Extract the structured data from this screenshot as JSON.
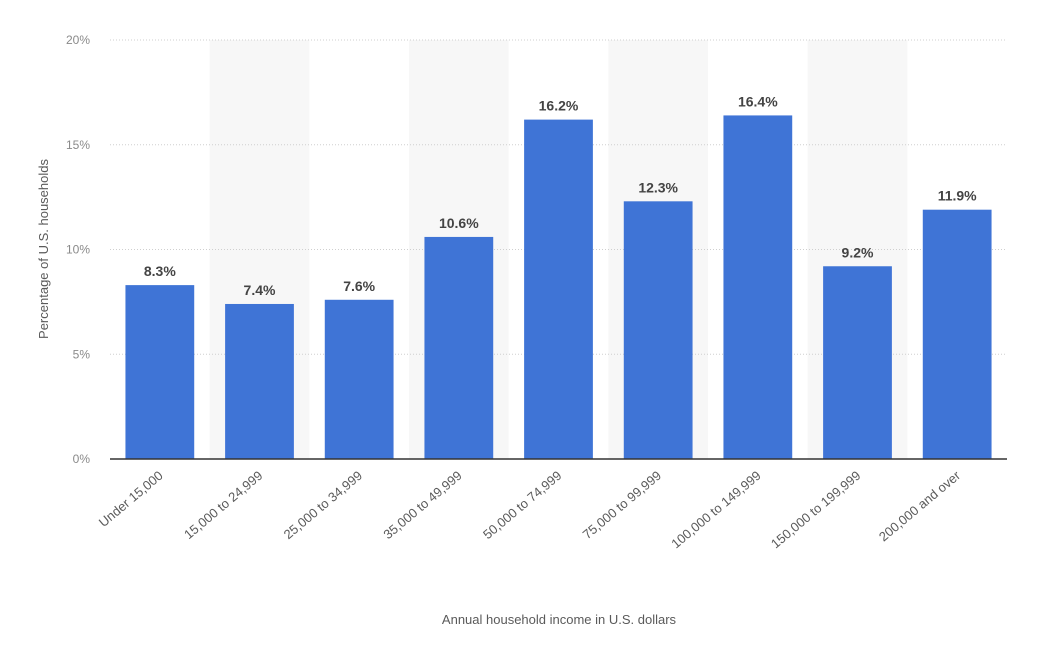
{
  "chart_data": {
    "type": "bar",
    "categories": [
      "Under 15,000",
      "15,000 to 24,999",
      "25,000 to 34,999",
      "35,000 to 49,999",
      "50,000 to 74,999",
      "75,000 to 99,999",
      "100,000 to 149,999",
      "150,000 to 199,999",
      "200,000 and over"
    ],
    "values": [
      8.3,
      7.4,
      7.6,
      10.6,
      16.2,
      12.3,
      16.4,
      9.2,
      11.9
    ],
    "data_labels": [
      "8.3%",
      "7.4%",
      "7.6%",
      "10.6%",
      "16.2%",
      "12.3%",
      "16.4%",
      "9.2%",
      "11.9%"
    ],
    "xlabel": "Annual household income in U.S. dollars",
    "ylabel": "Percentage of U.S. households",
    "ylim": [
      0,
      20
    ],
    "yticks": [
      0,
      5,
      10,
      15,
      20
    ],
    "ytick_labels": [
      "0%",
      "5%",
      "10%",
      "15%",
      "20%"
    ],
    "grid": true,
    "colors": {
      "bar": "#3f74d6",
      "alt_band": "#f7f7f7",
      "grid": "#cfcfcf",
      "axis": "#333333"
    }
  }
}
